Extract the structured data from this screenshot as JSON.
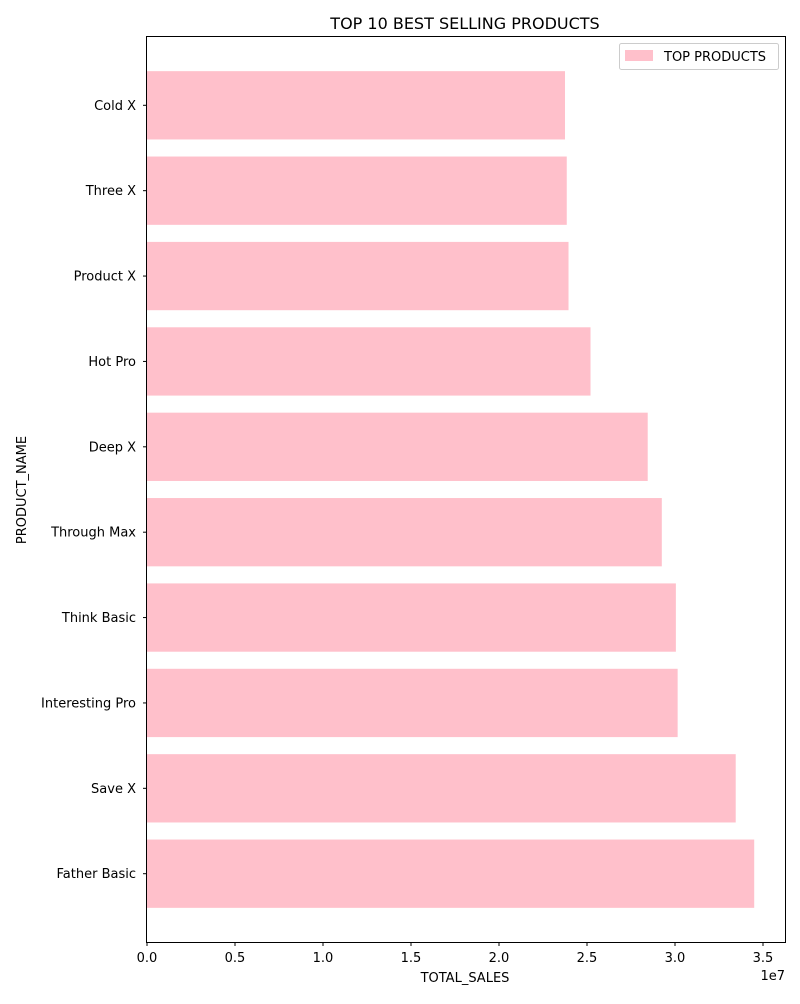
{
  "chart_data": {
    "type": "bar",
    "orientation": "horizontal",
    "title": "TOP 10 BEST SELLING PRODUCTS",
    "xlabel": "TOTAL_SALES",
    "ylabel": "PRODUCT_NAME",
    "x_scale_label": "1e7",
    "categories": [
      "Father Basic",
      "Save X",
      "Interesting Pro",
      "Think Basic",
      "Through Max",
      "Deep X",
      "Hot Pro",
      "Product X",
      "Three X",
      "Cold X"
    ],
    "values": [
      34500000,
      33450000,
      30150000,
      30050000,
      29250000,
      28450000,
      25200000,
      23950000,
      23850000,
      23750000
    ],
    "xlim": [
      0,
      36250000
    ],
    "xticks": [
      0,
      5000000,
      10000000,
      15000000,
      20000000,
      25000000,
      30000000,
      35000000
    ],
    "xtick_labels": [
      "0.0",
      "0.5",
      "1.0",
      "1.5",
      "2.0",
      "2.5",
      "3.0",
      "3.5"
    ],
    "grid": false,
    "legend": {
      "label": "TOP PRODUCTS",
      "position": "top-right"
    },
    "colors": {
      "bar": "#ffc0cb",
      "axis": "#000000",
      "background": "#ffffff"
    }
  }
}
